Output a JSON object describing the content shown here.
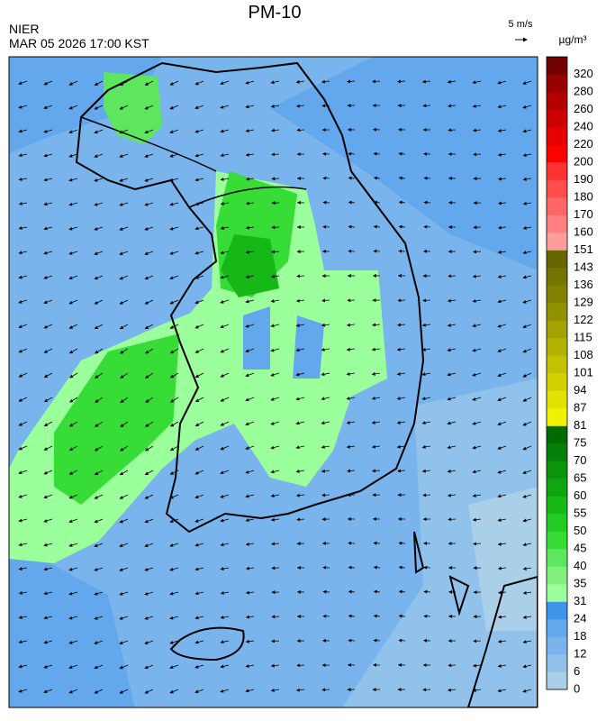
{
  "header": {
    "title": "PM-10",
    "source": "NIER",
    "datetime": "MAR 05 2026 17:00 KST"
  },
  "wind_scale": {
    "label": "5 m/s"
  },
  "colorbar": {
    "unit": "µg/m³",
    "levels": [
      0,
      6,
      12,
      18,
      24,
      31,
      35,
      40,
      45,
      50,
      55,
      60,
      65,
      70,
      75,
      81,
      87,
      94,
      101,
      108,
      115,
      122,
      129,
      136,
      143,
      151,
      160,
      170,
      180,
      190,
      200,
      220,
      240,
      260,
      280,
      320
    ],
    "colors": [
      "#a9cfe9",
      "#90c2ec",
      "#79b5ec",
      "#63a8ec",
      "#3f94ec",
      "#9bff9b",
      "#7ef07e",
      "#5fe65f",
      "#37dc37",
      "#22cc22",
      "#16b816",
      "#10a610",
      "#0b930b",
      "#078007",
      "#006c00",
      "#f2f200",
      "#e2e200",
      "#d2d200",
      "#c2c200",
      "#b2b200",
      "#a2a200",
      "#929200",
      "#828200",
      "#747400",
      "#666600",
      "#ff9c9c",
      "#ff8080",
      "#ff6666",
      "#ff4c4c",
      "#ff3333",
      "#ff0000",
      "#e60000",
      "#cc0000",
      "#b30000",
      "#990000",
      "#720000"
    ]
  }
}
